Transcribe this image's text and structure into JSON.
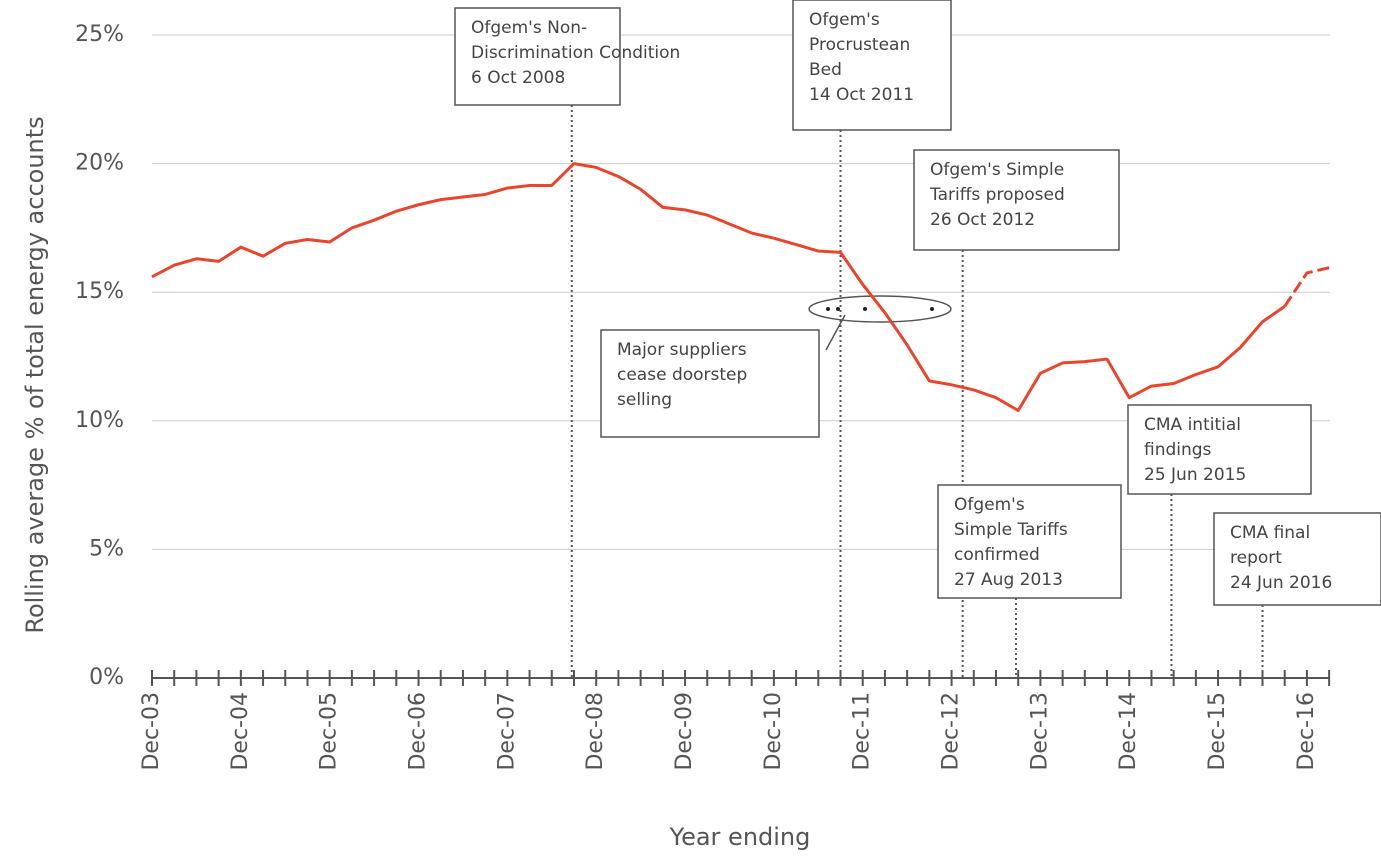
{
  "chart_data": {
    "type": "line",
    "y_label": "Rolling average % of total energy accounts",
    "x_label": "Year ending",
    "categories": [
      "Dec-03",
      null,
      null,
      null,
      "Dec-04",
      null,
      null,
      null,
      "Dec-05",
      null,
      null,
      null,
      "Dec-06",
      null,
      null,
      null,
      "Dec-07",
      null,
      null,
      null,
      "Dec-08",
      null,
      null,
      null,
      "Dec-09",
      null,
      null,
      null,
      "Dec-10",
      null,
      null,
      null,
      "Dec-11",
      null,
      null,
      null,
      "Dec-12",
      null,
      null,
      null,
      "Dec-13",
      null,
      null,
      null,
      "Dec-14",
      null,
      null,
      null,
      "Dec-15",
      null,
      null,
      null,
      "Dec-16",
      null
    ],
    "values": [
      15.6,
      16.05,
      16.3,
      16.2,
      16.75,
      16.4,
      16.9,
      17.05,
      16.95,
      17.5,
      17.8,
      18.15,
      18.4,
      18.6,
      18.7,
      18.8,
      19.05,
      19.15,
      19.15,
      20.0,
      19.85,
      19.5,
      19.0,
      18.3,
      18.2,
      18.0,
      17.65,
      17.3,
      17.1,
      16.85,
      16.6,
      16.55,
      15.3,
      14.2,
      12.95,
      11.55,
      11.4,
      11.2,
      10.9,
      10.4,
      11.85,
      12.25,
      12.3,
      12.4,
      10.9,
      11.35,
      11.45,
      11.8,
      12.1,
      12.85,
      13.85,
      14.45,
      15.75,
      15.95
    ],
    "dashed_from_index": 51,
    "color": "#e8452c",
    "ylim": [
      0,
      25
    ],
    "yticks": [
      {
        "value": 0,
        "label": "0%"
      },
      {
        "value": 5,
        "label": "5%"
      },
      {
        "value": 10,
        "label": "10%"
      },
      {
        "value": 15,
        "label": "15%"
      },
      {
        "value": 20,
        "label": "20%"
      },
      {
        "value": 25,
        "label": "25%"
      }
    ],
    "grid": true,
    "annotations": [
      {
        "lines": [
          "Ofgem's Non-",
          "Discrimination Condition",
          "6 Oct 2008"
        ],
        "x": 18.9
      },
      {
        "lines": [
          "Ofgem's",
          "Procrustean",
          "Bed",
          "14 Oct 2011"
        ],
        "x": 31.0
      },
      {
        "lines": [
          "Ofgem's Simple",
          "Tariffs proposed",
          "26 Oct 2012"
        ],
        "x": 36.5
      },
      {
        "lines": [
          "Ofgem's",
          "Simple Tariffs",
          "confirmed",
          "27 Aug 2013"
        ],
        "x": 38.9
      },
      {
        "lines": [
          "CMA intitial",
          "findings",
          "25 Jun 2015"
        ],
        "x": 45.9
      },
      {
        "lines": [
          "CMA final",
          "report",
          "24 Jun 2016"
        ],
        "x": 50.0
      },
      {
        "lines": [
          "Major suppliers",
          "cease doorstep",
          "selling"
        ],
        "x": null
      }
    ]
  }
}
